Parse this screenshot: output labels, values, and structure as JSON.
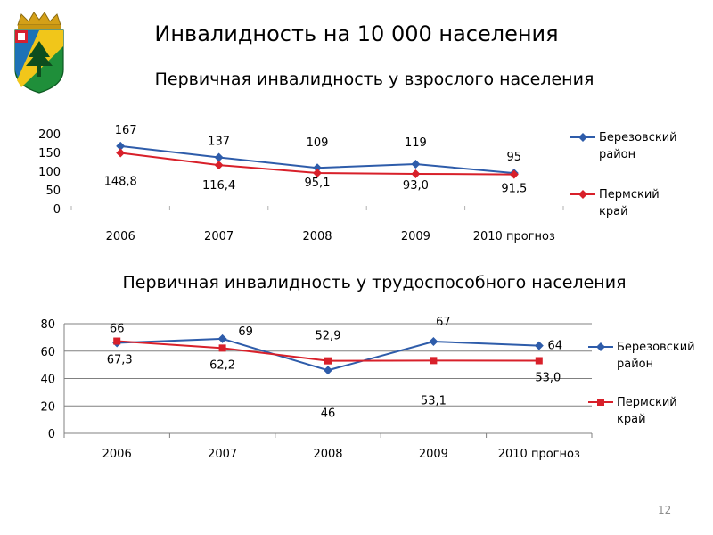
{
  "title": "Инвалидность на 10 000 населения",
  "page_number": "12",
  "colors": {
    "blue": "#2e5caa",
    "red": "#d8202a",
    "grid": "#808080"
  },
  "chart_data": [
    {
      "type": "line",
      "title": "Первичная инвалидность у взрослого населения",
      "categories": [
        "2006",
        "2007",
        "2008",
        "2009",
        "2010 прогноз"
      ],
      "ylim": [
        0,
        200
      ],
      "yticks": [
        "200",
        "150",
        "100",
        "50",
        "0"
      ],
      "grid": false,
      "legend": "right",
      "series": [
        {
          "name": "Березовский район",
          "values": [
            167,
            137,
            109,
            119,
            95
          ],
          "labels": [
            "167",
            "137",
            "109",
            "119",
            "95"
          ],
          "color": "#2e5caa",
          "marker": "diamond"
        },
        {
          "name": "Пермский край",
          "values": [
            148.8,
            116.4,
            95.1,
            93.0,
            91.5
          ],
          "labels": [
            "148,8",
            "116,4",
            "95,1",
            "93,0",
            "91,5"
          ],
          "color": "#d8202a",
          "marker": "diamond"
        }
      ]
    },
    {
      "type": "line",
      "title": "Первичная инвалидность у трудоспособного населения",
      "categories": [
        "2006",
        "2007",
        "2008",
        "2009",
        "2010 прогноз"
      ],
      "ylim": [
        0,
        80
      ],
      "yticks": [
        "80",
        "60",
        "40",
        "20",
        "0"
      ],
      "grid": true,
      "legend": "right",
      "series": [
        {
          "name": "Березовский район",
          "values": [
            66,
            69,
            46,
            67,
            64
          ],
          "labels": [
            "66",
            "69",
            "46",
            "67",
            "64"
          ],
          "color": "#2e5caa",
          "marker": "diamond"
        },
        {
          "name": "Пермский край",
          "values": [
            67.3,
            62.2,
            52.9,
            53.1,
            53.0
          ],
          "labels": [
            "67,3",
            "62,2",
            "52,9",
            "53,1",
            "53,0"
          ],
          "color": "#d8202a",
          "marker": "square"
        }
      ]
    }
  ]
}
